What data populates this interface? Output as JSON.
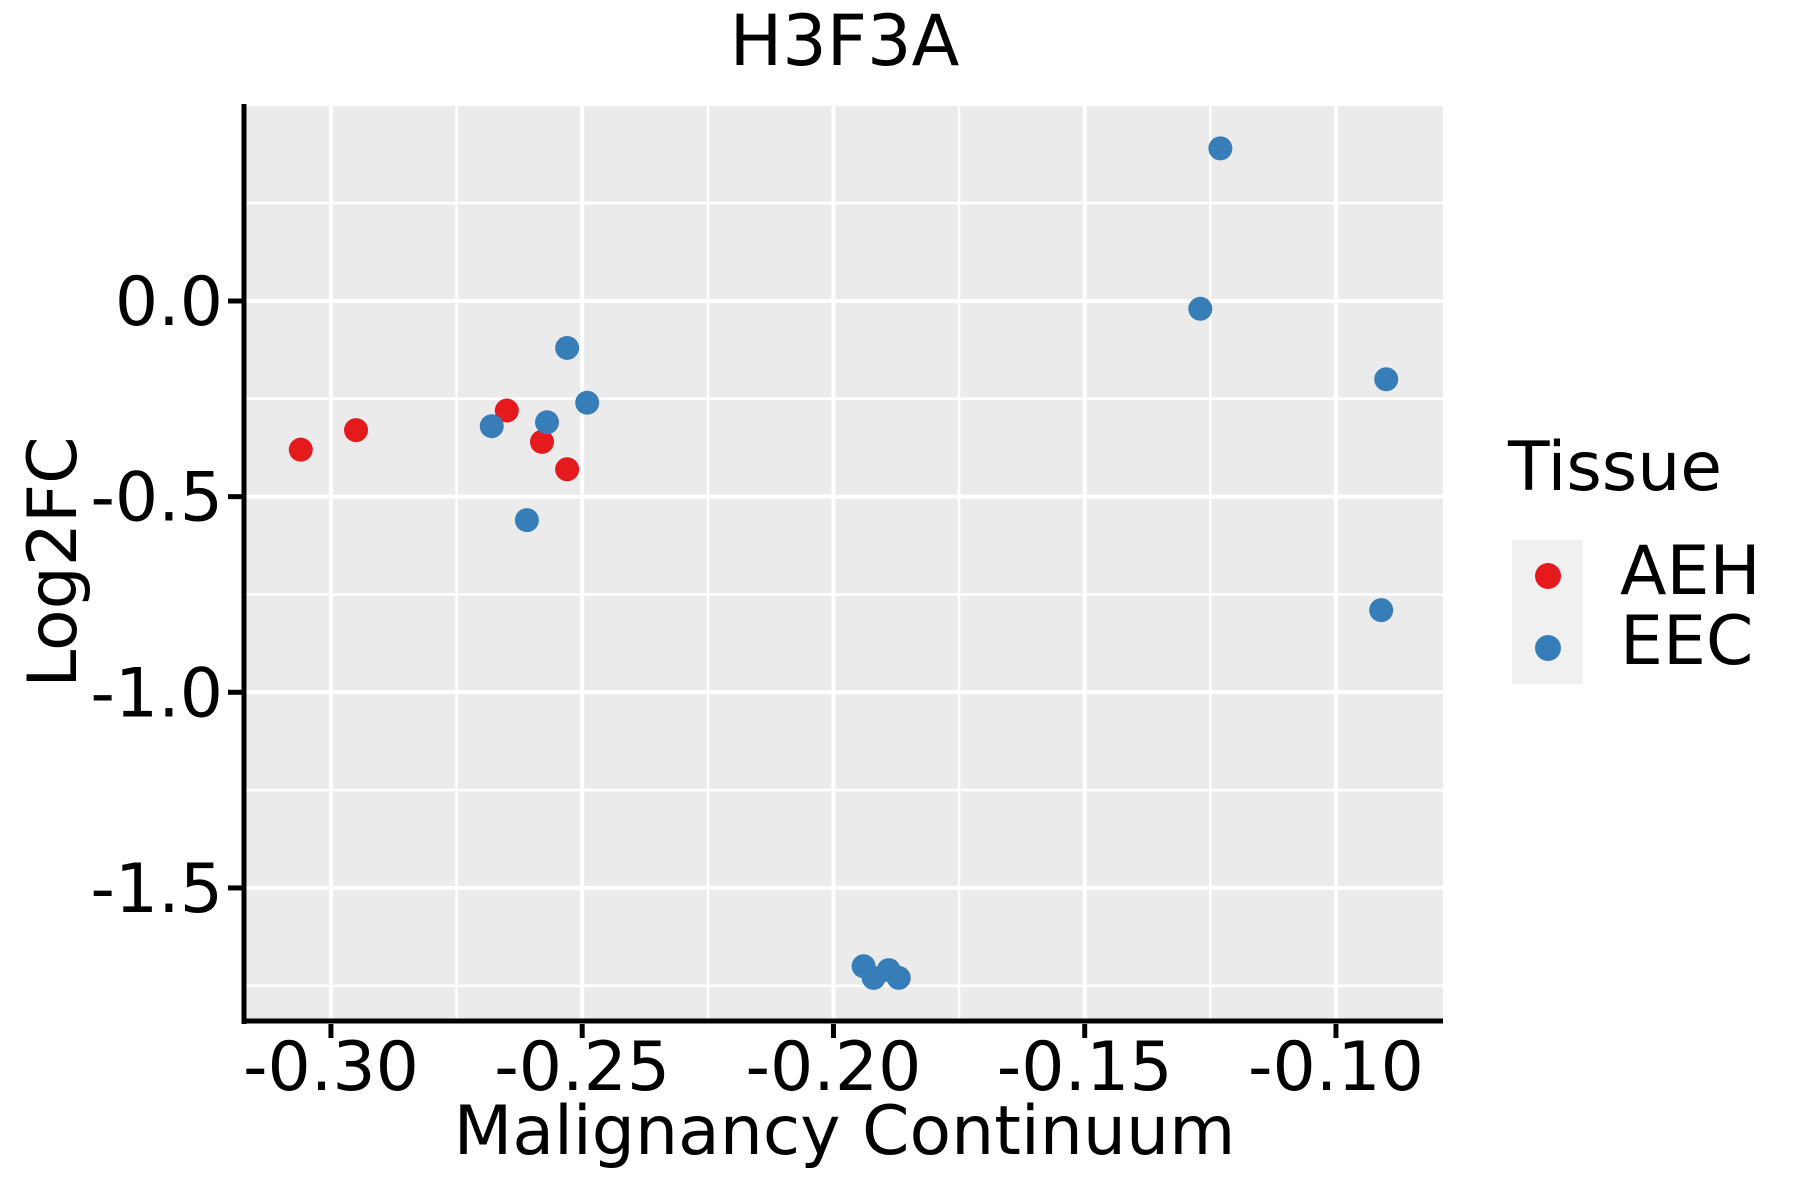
{
  "chart_data": {
    "type": "scatter",
    "title": "H3F3A",
    "xlabel": "Malignancy Continuum",
    "ylabel": "Log2FC",
    "xlim": [
      -0.3169,
      -0.0787
    ],
    "ylim": [
      -1.8375,
      0.4983
    ],
    "grid": true,
    "panel_bg": "#EBEBEB",
    "grid_color": "#FFFFFF",
    "axis_color": "#000000",
    "x_ticks": {
      "values": [
        -0.3,
        -0.25,
        -0.2,
        -0.15,
        -0.1
      ],
      "labels": [
        "-0.30",
        "-0.25",
        "-0.20",
        "-0.15",
        "-0.10"
      ],
      "minor": [
        -0.275,
        -0.225,
        -0.175,
        -0.125
      ]
    },
    "y_ticks": {
      "values": [
        0.0,
        -0.5,
        -1.0,
        -1.5
      ],
      "labels": [
        "0.0",
        "-0.5",
        "-1.0",
        "-1.5"
      ],
      "minor": [
        0.25,
        -0.25,
        -0.75,
        -1.25,
        -1.75
      ]
    },
    "legend": {
      "title": "Tissue",
      "position": "right",
      "items": [
        {
          "label": "AEH",
          "color": "#E41A1C"
        },
        {
          "label": "EEC",
          "color": "#377EB8"
        }
      ]
    },
    "point_radius_px": 12,
    "series": [
      {
        "name": "AEH",
        "color": "#E41A1C",
        "points": [
          [
            -0.306,
            -0.38
          ],
          [
            -0.295,
            -0.33
          ],
          [
            -0.265,
            -0.28
          ],
          [
            -0.258,
            -0.36
          ],
          [
            -0.253,
            -0.43
          ]
        ]
      },
      {
        "name": "EEC",
        "color": "#377EB8",
        "points": [
          [
            -0.268,
            -0.32
          ],
          [
            -0.257,
            -0.31
          ],
          [
            -0.253,
            -0.12
          ],
          [
            -0.249,
            -0.26
          ],
          [
            -0.261,
            -0.56
          ],
          [
            -0.194,
            -1.7
          ],
          [
            -0.192,
            -1.73
          ],
          [
            -0.189,
            -1.71
          ],
          [
            -0.187,
            -1.73
          ],
          [
            -0.127,
            -0.02
          ],
          [
            -0.123,
            0.39
          ],
          [
            -0.09,
            -0.2
          ],
          [
            -0.091,
            -0.79
          ]
        ]
      }
    ]
  }
}
